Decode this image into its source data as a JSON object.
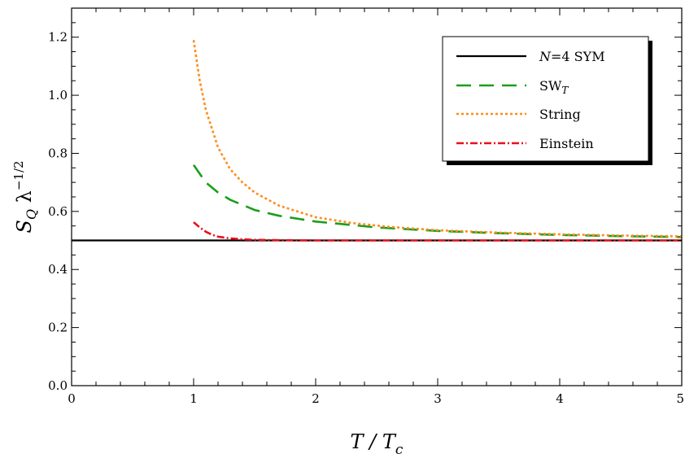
{
  "chart_data": {
    "type": "line",
    "title": "",
    "xlabel": "T / T_c",
    "ylabel": "S_Q λ^{-1/2}",
    "xlim": [
      0,
      5
    ],
    "ylim": [
      0,
      1.3
    ],
    "x_ticks": [
      0,
      1,
      2,
      3,
      4,
      5
    ],
    "y_ticks": [
      0.0,
      0.2,
      0.4,
      0.6,
      0.8,
      1.0,
      1.2
    ],
    "x_tick_labels": [
      "0",
      "1",
      "2",
      "3",
      "4",
      "5"
    ],
    "y_tick_labels": [
      "0.0",
      "0.2",
      "0.4",
      "0.6",
      "0.8",
      "1.0",
      "1.2"
    ],
    "grid": false,
    "legend_position": "top-right",
    "series": [
      {
        "name": "N=4 SYM",
        "color": "#000000",
        "style": "solid",
        "x": [
          0,
          5
        ],
        "y": [
          0.5,
          0.5
        ]
      },
      {
        "name": "SW_T",
        "color": "#1a9e1a",
        "style": "dashed",
        "x": [
          1.0,
          1.1,
          1.2,
          1.3,
          1.5,
          1.7,
          2.0,
          2.5,
          3.0,
          3.5,
          4.0,
          4.5,
          5.0
        ],
        "y": [
          0.76,
          0.7,
          0.665,
          0.64,
          0.605,
          0.585,
          0.565,
          0.545,
          0.533,
          0.525,
          0.519,
          0.515,
          0.512
        ]
      },
      {
        "name": "String",
        "color": "#ff8c1a",
        "style": "dotted",
        "x": [
          1.0,
          1.05,
          1.1,
          1.2,
          1.3,
          1.4,
          1.5,
          1.7,
          2.0,
          2.3,
          2.6,
          3.0,
          3.5,
          4.0,
          4.5,
          5.0
        ],
        "y": [
          1.19,
          1.05,
          0.95,
          0.82,
          0.745,
          0.7,
          0.665,
          0.62,
          0.58,
          0.56,
          0.547,
          0.535,
          0.527,
          0.521,
          0.517,
          0.514
        ]
      },
      {
        "name": "Einstein",
        "color": "#e8101a",
        "style": "dashdot",
        "x": [
          1.0,
          1.05,
          1.1,
          1.15,
          1.2,
          1.3,
          1.4,
          1.5,
          1.7,
          2.0,
          3.0,
          5.0
        ],
        "y": [
          0.563,
          0.545,
          0.53,
          0.52,
          0.513,
          0.507,
          0.504,
          0.502,
          0.501,
          0.5,
          0.5,
          0.5
        ]
      }
    ]
  }
}
